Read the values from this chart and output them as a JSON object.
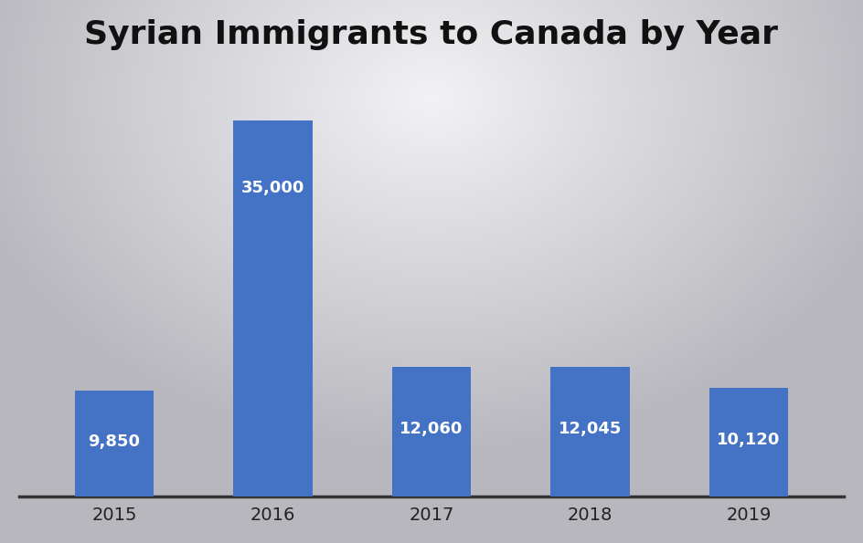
{
  "title": "Syrian Immigrants to Canada by Year",
  "categories": [
    "2015",
    "2016",
    "2017",
    "2018",
    "2019"
  ],
  "values": [
    9850,
    35000,
    12060,
    12045,
    10120
  ],
  "labels": [
    "9,850",
    "35,000",
    "12,060",
    "12,045",
    "10,120"
  ],
  "bar_color": "#4472C4",
  "label_color": "#ffffff",
  "title_fontsize": 26,
  "label_fontsize": 13,
  "tick_fontsize": 14,
  "ylim": [
    0,
    40000
  ],
  "bar_width": 0.5,
  "bg_outer": "#b0b0b8",
  "bg_inner": "#f0f0f4",
  "grid_color": "#aaaaaa",
  "title_fontweight": "bold",
  "n_grid_lines": 8
}
